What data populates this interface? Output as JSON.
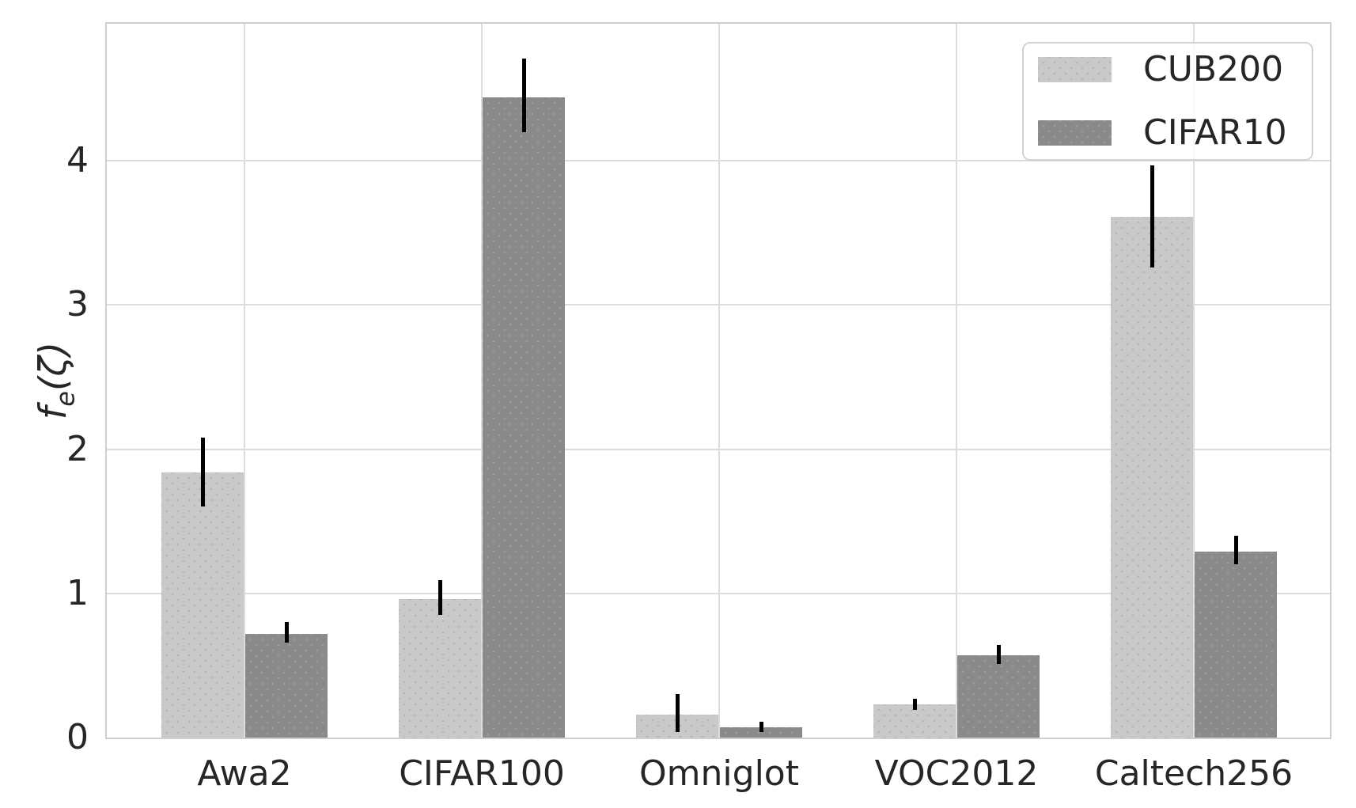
{
  "chart_data": {
    "type": "bar",
    "title": "",
    "xlabel": "",
    "ylabel": {
      "base": "f",
      "sub": "e",
      "rest": "(ζ)"
    },
    "categories": [
      "Awa2",
      "CIFAR100",
      "Omniglot",
      "VOC2012",
      "Caltech256"
    ],
    "series": [
      {
        "name": "CUB200",
        "color": "#c9c9c9",
        "values": [
          1.84,
          0.96,
          0.16,
          0.23,
          3.61
        ],
        "err_low": [
          1.6,
          0.85,
          0.04,
          0.19,
          3.26
        ],
        "err_high": [
          2.08,
          1.09,
          0.3,
          0.27,
          3.97
        ]
      },
      {
        "name": "CIFAR10",
        "color": "#8a8a8a",
        "values": [
          0.72,
          4.44,
          0.07,
          0.57,
          1.29
        ],
        "err_low": [
          0.66,
          4.2,
          0.04,
          0.51,
          1.2
        ],
        "err_high": [
          0.8,
          4.71,
          0.11,
          0.64,
          1.4
        ]
      }
    ],
    "yticks": [
      0,
      1,
      2,
      3,
      4
    ],
    "ylim": [
      0,
      4.95
    ],
    "grid": true,
    "legend_position": "upper right",
    "error_bar_color": "#000000",
    "gridline_color": "#dcdcdc",
    "spine_color": "#cfcfcf",
    "text_color": "#262626",
    "background_color": "#ffffff"
  }
}
